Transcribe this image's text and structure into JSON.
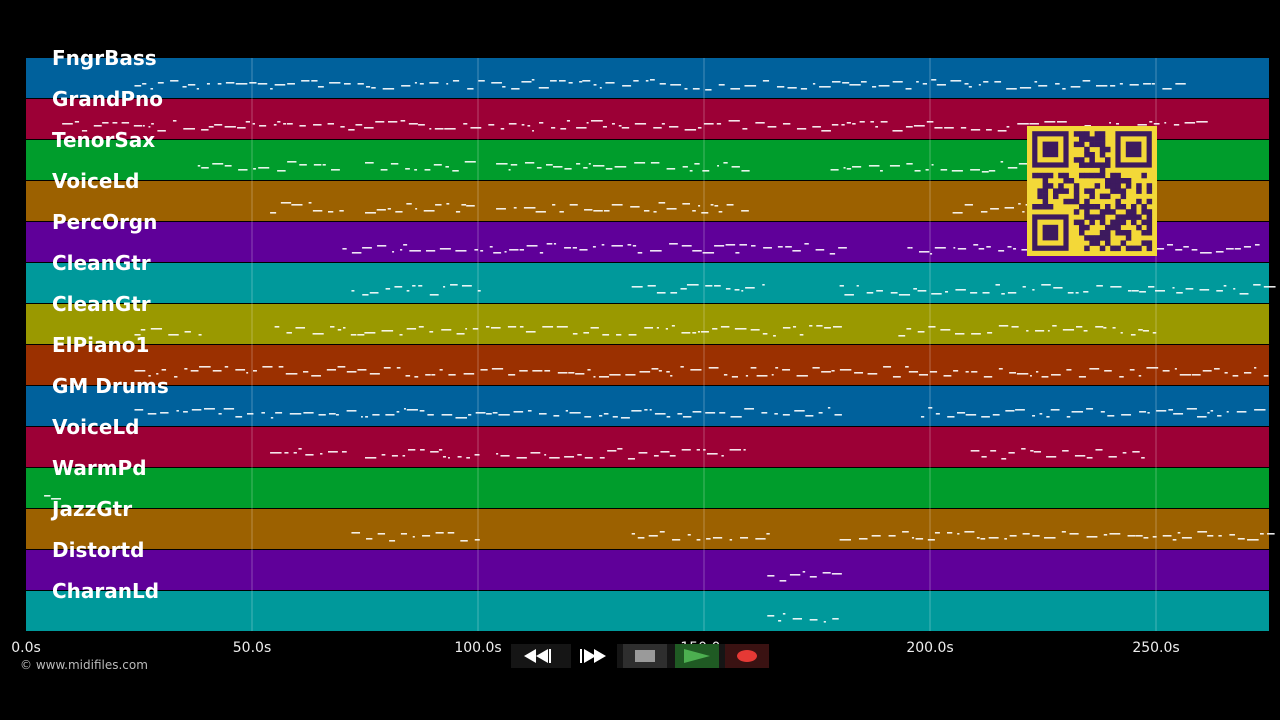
{
  "timeline": {
    "max_seconds": 275,
    "ticks": [
      {
        "seconds": 0,
        "label": "0.0s"
      },
      {
        "seconds": 50,
        "label": "50.0s"
      },
      {
        "seconds": 100,
        "label": "100.0s"
      },
      {
        "seconds": 150,
        "label": "150.0s"
      },
      {
        "seconds": 200,
        "label": "200.0s"
      },
      {
        "seconds": 250,
        "label": "250.0s"
      }
    ]
  },
  "tracks": [
    {
      "name": "FngrBass",
      "color": "#00619c"
    },
    {
      "name": "GrandPno",
      "color": "#9c0036"
    },
    {
      "name": "TenorSax",
      "color": "#009d2c"
    },
    {
      "name": "VoiceLd",
      "color": "#9c6100"
    },
    {
      "name": "PercOrgn",
      "color": "#5f0099"
    },
    {
      "name": "CleanGtr",
      "color": "#00999b"
    },
    {
      "name": "CleanGtr",
      "color": "#9a9900"
    },
    {
      "name": "ElPiano1",
      "color": "#9b3000"
    },
    {
      "name": "GM Drums",
      "color": "#00619c"
    },
    {
      "name": "VoiceLd",
      "color": "#9c0036"
    },
    {
      "name": "WarmPd",
      "color": "#009d2c"
    },
    {
      "name": "JazzGtr",
      "color": "#9c6100"
    },
    {
      "name": "Distortd",
      "color": "#5f0099"
    },
    {
      "name": "CharanLd",
      "color": "#00999b"
    }
  ],
  "copyright": "© www.midifiles.com",
  "transport": {
    "rewind": "rewind-icon",
    "fast_forward": "fast-forward-icon",
    "stop": "stop-icon",
    "play": "play-icon",
    "record": "record-icon"
  },
  "qr_code": "qr-code"
}
